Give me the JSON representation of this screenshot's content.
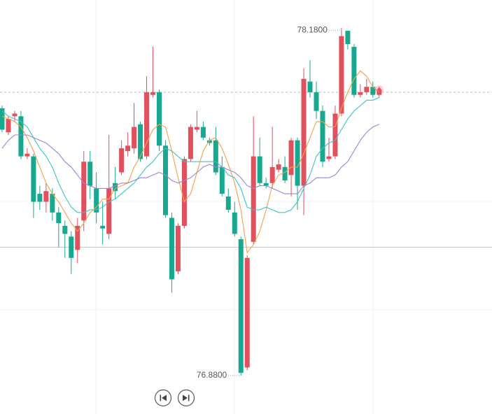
{
  "chart_data": {
    "type": "candlestick",
    "ylim": [
      76.736,
      78.285
    ],
    "up_color": "#e0515d",
    "down_color": "#17a88f",
    "open": [
      77.88,
      77.79,
      77.85,
      77.85,
      77.7,
      77.7,
      77.56,
      77.53,
      77.56,
      77.49,
      77.44,
      77.4,
      77.35,
      77.46,
      77.68,
      77.58,
      77.44,
      77.41,
      77.6,
      77.64,
      77.72,
      77.73,
      77.82,
      77.7,
      77.93,
      77.94,
      77.74,
      77.47,
      77.27,
      77.44,
      77.69,
      77.8,
      77.81,
      77.76,
      77.76,
      77.66,
      77.55,
      77.49,
      77.39,
      76.91,
      77.38,
      77.7,
      77.6,
      77.6,
      77.65,
      77.66,
      77.63,
      77.76,
      77.59,
      77.98,
      77.94,
      77.87,
      77.69,
      77.7,
      77.86,
      78.17,
      78.11,
      77.93,
      77.94,
      77.96,
      77.93
    ],
    "high": [
      77.89,
      77.85,
      77.87,
      77.87,
      77.73,
      77.71,
      77.59,
      77.6,
      77.58,
      77.51,
      77.46,
      77.42,
      77.47,
      77.72,
      77.72,
      77.64,
      77.53,
      77.78,
      77.66,
      77.76,
      77.79,
      77.9,
      77.83,
      78.0,
      78.11,
      77.95,
      77.76,
      77.49,
      77.45,
      77.7,
      77.82,
      77.87,
      77.83,
      77.77,
      77.81,
      77.7,
      77.58,
      77.53,
      77.4,
      77.33,
      77.85,
      77.77,
      77.62,
      77.81,
      77.69,
      77.7,
      77.77,
      77.77,
      78.03,
      78.06,
      77.98,
      77.89,
      77.77,
      77.89,
      78.18,
      78.17,
      78.12,
      77.97,
      77.99,
      77.98,
      77.96
    ],
    "low": [
      77.79,
      77.78,
      77.83,
      77.69,
      77.69,
      77.47,
      77.5,
      77.49,
      77.46,
      77.36,
      77.32,
      77.26,
      77.3,
      77.42,
      77.54,
      77.45,
      77.37,
      77.39,
      77.54,
      77.63,
      77.7,
      77.71,
      77.68,
      77.69,
      77.92,
      77.72,
      77.47,
      77.19,
      77.26,
      77.43,
      77.68,
      77.79,
      77.76,
      77.74,
      77.63,
      77.55,
      77.49,
      77.4,
      76.88,
      76.9,
      77.37,
      77.59,
      77.58,
      77.58,
      77.64,
      77.6,
      77.55,
      77.5,
      77.48,
      77.92,
      77.84,
      77.66,
      77.68,
      77.69,
      77.85,
      78.1,
      77.92,
      77.92,
      77.93,
      77.92,
      77.92
    ],
    "close": [
      77.8,
      77.84,
      77.86,
      77.7,
      77.71,
      77.53,
      77.53,
      77.57,
      77.49,
      77.45,
      77.41,
      77.32,
      77.44,
      77.68,
      77.59,
      77.49,
      77.43,
      77.58,
      77.57,
      77.73,
      77.74,
      77.81,
      77.69,
      77.94,
      77.94,
      77.74,
      77.48,
      77.24,
      77.44,
      77.69,
      77.81,
      77.81,
      77.77,
      77.75,
      77.64,
      77.56,
      77.5,
      77.41,
      76.89,
      77.32,
      77.7,
      77.6,
      77.59,
      77.66,
      77.67,
      77.61,
      77.76,
      77.59,
      77.99,
      77.94,
      77.87,
      77.68,
      77.7,
      77.86,
      78.15,
      78.12,
      77.93,
      77.94,
      77.96,
      77.93,
      77.95
    ],
    "series": [
      {
        "color": "#f5a04a",
        "values": [
          77.85,
          77.84,
          77.83,
          77.81,
          77.77,
          77.72,
          77.66,
          77.6,
          77.56,
          77.53,
          77.49,
          77.45,
          77.42,
          77.45,
          77.49,
          77.51,
          77.54,
          77.54,
          77.58,
          77.59,
          77.6,
          77.66,
          77.7,
          77.75,
          77.8,
          77.82,
          77.81,
          77.72,
          77.62,
          77.53,
          77.56,
          77.64,
          77.72,
          77.76,
          77.77,
          77.73,
          77.67,
          77.6,
          77.5,
          77.34,
          77.37,
          77.42,
          77.5,
          77.59,
          77.63,
          77.64,
          77.66,
          77.66,
          77.71,
          77.77,
          77.83,
          77.83,
          77.81,
          77.81,
          77.88,
          77.94,
          77.99,
          78.02,
          78.0,
          77.96,
          77.94
        ]
      },
      {
        "color": "#3cc3c8",
        "values": [
          77.87,
          77.85,
          77.84,
          77.83,
          77.81,
          77.77,
          77.73,
          77.7,
          77.66,
          77.6,
          77.55,
          77.51,
          77.49,
          77.49,
          77.5,
          77.5,
          77.51,
          77.53,
          77.54,
          77.56,
          77.58,
          77.6,
          77.63,
          77.66,
          77.68,
          77.71,
          77.73,
          77.72,
          77.7,
          77.68,
          77.68,
          77.68,
          77.68,
          77.68,
          77.68,
          77.66,
          77.63,
          77.62,
          77.58,
          77.51,
          77.5,
          77.5,
          77.51,
          77.5,
          77.49,
          77.49,
          77.5,
          77.53,
          77.58,
          77.63,
          77.7,
          77.73,
          77.75,
          77.76,
          77.8,
          77.84,
          77.87,
          77.89,
          77.91,
          77.91,
          77.92
        ]
      },
      {
        "color": "#9b84d6",
        "values": [
          77.73,
          77.76,
          77.78,
          77.78,
          77.78,
          77.77,
          77.76,
          77.75,
          77.73,
          77.71,
          77.68,
          77.66,
          77.63,
          77.6,
          77.59,
          77.58,
          77.58,
          77.58,
          77.59,
          77.6,
          77.6,
          77.61,
          77.62,
          77.62,
          77.63,
          77.64,
          77.63,
          77.61,
          77.6,
          77.61,
          77.62,
          77.64,
          77.66,
          77.67,
          77.66,
          77.66,
          77.65,
          77.64,
          77.62,
          77.59,
          77.58,
          77.59,
          77.59,
          77.58,
          77.57,
          77.56,
          77.56,
          77.56,
          77.59,
          77.6,
          77.62,
          77.62,
          77.62,
          77.63,
          77.66,
          77.68,
          77.72,
          77.76,
          77.79,
          77.81,
          77.82
        ]
      }
    ],
    "price_line": 77.94,
    "reference_line": 77.36,
    "annotations": [
      {
        "label": "78.1800",
        "value": 78.18,
        "field": "high"
      },
      {
        "label": "76.8800",
        "value": 76.88,
        "field": "low"
      }
    ]
  }
}
